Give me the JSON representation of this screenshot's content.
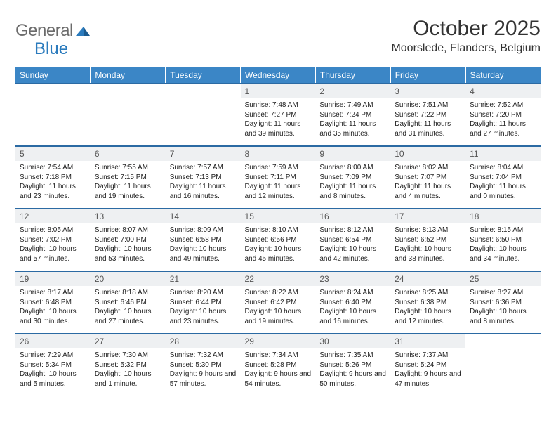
{
  "logo": {
    "gray": "General",
    "blue": "Blue"
  },
  "title": "October 2025",
  "location": "Moorslede, Flanders, Belgium",
  "colors": {
    "header_bg": "#3b86c6",
    "header_text": "#ffffff",
    "cell_divider": "#2b6aa3",
    "daynum_bg": "#eef0f2",
    "logo_gray": "#6b6b6b",
    "logo_blue": "#2b7bbd",
    "text": "#222222"
  },
  "day_headers": [
    "Sunday",
    "Monday",
    "Tuesday",
    "Wednesday",
    "Thursday",
    "Friday",
    "Saturday"
  ],
  "weeks": [
    [
      {
        "empty": true
      },
      {
        "empty": true
      },
      {
        "empty": true
      },
      {
        "num": "1",
        "sunrise": "7:48 AM",
        "sunset": "7:27 PM",
        "daylight": "11 hours and 39 minutes."
      },
      {
        "num": "2",
        "sunrise": "7:49 AM",
        "sunset": "7:24 PM",
        "daylight": "11 hours and 35 minutes."
      },
      {
        "num": "3",
        "sunrise": "7:51 AM",
        "sunset": "7:22 PM",
        "daylight": "11 hours and 31 minutes."
      },
      {
        "num": "4",
        "sunrise": "7:52 AM",
        "sunset": "7:20 PM",
        "daylight": "11 hours and 27 minutes."
      }
    ],
    [
      {
        "num": "5",
        "sunrise": "7:54 AM",
        "sunset": "7:18 PM",
        "daylight": "11 hours and 23 minutes."
      },
      {
        "num": "6",
        "sunrise": "7:55 AM",
        "sunset": "7:15 PM",
        "daylight": "11 hours and 19 minutes."
      },
      {
        "num": "7",
        "sunrise": "7:57 AM",
        "sunset": "7:13 PM",
        "daylight": "11 hours and 16 minutes."
      },
      {
        "num": "8",
        "sunrise": "7:59 AM",
        "sunset": "7:11 PM",
        "daylight": "11 hours and 12 minutes."
      },
      {
        "num": "9",
        "sunrise": "8:00 AM",
        "sunset": "7:09 PM",
        "daylight": "11 hours and 8 minutes."
      },
      {
        "num": "10",
        "sunrise": "8:02 AM",
        "sunset": "7:07 PM",
        "daylight": "11 hours and 4 minutes."
      },
      {
        "num": "11",
        "sunrise": "8:04 AM",
        "sunset": "7:04 PM",
        "daylight": "11 hours and 0 minutes."
      }
    ],
    [
      {
        "num": "12",
        "sunrise": "8:05 AM",
        "sunset": "7:02 PM",
        "daylight": "10 hours and 57 minutes."
      },
      {
        "num": "13",
        "sunrise": "8:07 AM",
        "sunset": "7:00 PM",
        "daylight": "10 hours and 53 minutes."
      },
      {
        "num": "14",
        "sunrise": "8:09 AM",
        "sunset": "6:58 PM",
        "daylight": "10 hours and 49 minutes."
      },
      {
        "num": "15",
        "sunrise": "8:10 AM",
        "sunset": "6:56 PM",
        "daylight": "10 hours and 45 minutes."
      },
      {
        "num": "16",
        "sunrise": "8:12 AM",
        "sunset": "6:54 PM",
        "daylight": "10 hours and 42 minutes."
      },
      {
        "num": "17",
        "sunrise": "8:13 AM",
        "sunset": "6:52 PM",
        "daylight": "10 hours and 38 minutes."
      },
      {
        "num": "18",
        "sunrise": "8:15 AM",
        "sunset": "6:50 PM",
        "daylight": "10 hours and 34 minutes."
      }
    ],
    [
      {
        "num": "19",
        "sunrise": "8:17 AM",
        "sunset": "6:48 PM",
        "daylight": "10 hours and 30 minutes."
      },
      {
        "num": "20",
        "sunrise": "8:18 AM",
        "sunset": "6:46 PM",
        "daylight": "10 hours and 27 minutes."
      },
      {
        "num": "21",
        "sunrise": "8:20 AM",
        "sunset": "6:44 PM",
        "daylight": "10 hours and 23 minutes."
      },
      {
        "num": "22",
        "sunrise": "8:22 AM",
        "sunset": "6:42 PM",
        "daylight": "10 hours and 19 minutes."
      },
      {
        "num": "23",
        "sunrise": "8:24 AM",
        "sunset": "6:40 PM",
        "daylight": "10 hours and 16 minutes."
      },
      {
        "num": "24",
        "sunrise": "8:25 AM",
        "sunset": "6:38 PM",
        "daylight": "10 hours and 12 minutes."
      },
      {
        "num": "25",
        "sunrise": "8:27 AM",
        "sunset": "6:36 PM",
        "daylight": "10 hours and 8 minutes."
      }
    ],
    [
      {
        "num": "26",
        "sunrise": "7:29 AM",
        "sunset": "5:34 PM",
        "daylight": "10 hours and 5 minutes."
      },
      {
        "num": "27",
        "sunrise": "7:30 AM",
        "sunset": "5:32 PM",
        "daylight": "10 hours and 1 minute."
      },
      {
        "num": "28",
        "sunrise": "7:32 AM",
        "sunset": "5:30 PM",
        "daylight": "9 hours and 57 minutes."
      },
      {
        "num": "29",
        "sunrise": "7:34 AM",
        "sunset": "5:28 PM",
        "daylight": "9 hours and 54 minutes."
      },
      {
        "num": "30",
        "sunrise": "7:35 AM",
        "sunset": "5:26 PM",
        "daylight": "9 hours and 50 minutes."
      },
      {
        "num": "31",
        "sunrise": "7:37 AM",
        "sunset": "5:24 PM",
        "daylight": "9 hours and 47 minutes."
      },
      {
        "empty": true
      }
    ]
  ],
  "labels": {
    "sunrise": "Sunrise:",
    "sunset": "Sunset:",
    "daylight": "Daylight:"
  }
}
